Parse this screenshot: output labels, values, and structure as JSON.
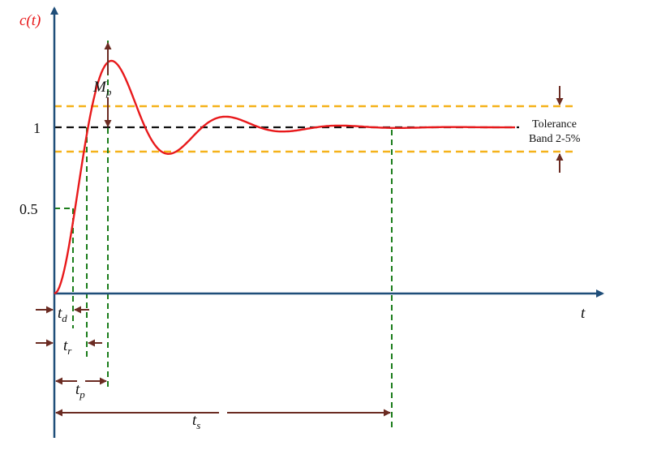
{
  "labels": {
    "y_axis": "c(t)",
    "x_axis": "t",
    "mp_main": "M",
    "mp_sub": "p",
    "tick_1": "1",
    "tick_half": "0.5",
    "td_main": "t",
    "td_sub": "d",
    "tr_main": "t",
    "tr_sub": "r",
    "tp_main": "t",
    "tp_sub": "p",
    "ts_main": "t",
    "ts_sub": "s",
    "tolerance_line1": "Tolerance",
    "tolerance_line2": "Band 2-5%"
  },
  "colors": {
    "axis": "#1f4e79",
    "response": "#e8191b",
    "reference": "#111111",
    "tolerance": "#f5b21a",
    "markers": "#1b7d1b",
    "arrows": "#6b2b22",
    "ylabel": "#e8191b"
  }
}
